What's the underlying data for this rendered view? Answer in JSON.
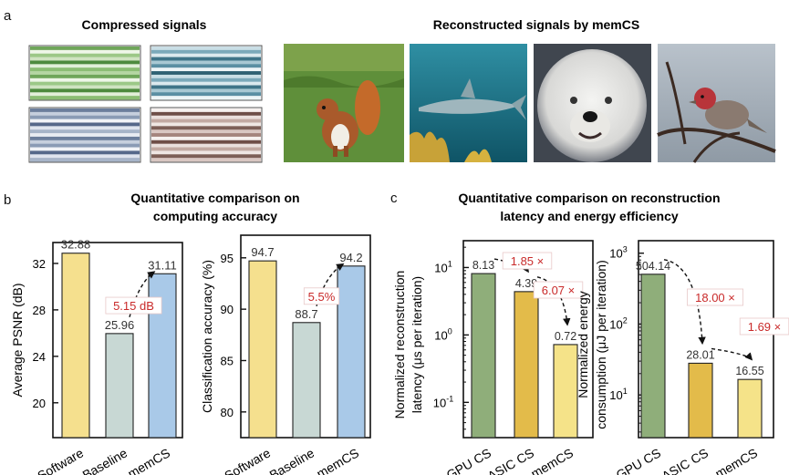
{
  "panel_letters": {
    "a": "a",
    "b": "b",
    "c": "c"
  },
  "panel_a": {
    "compressed_title": "Compressed signals",
    "reconstructed_title": "Reconstructed signals by memCS",
    "compressed_tiles": [
      {
        "name": "green",
        "colors": [
          "#6fa65a",
          "#cfe3c1",
          "#8bbd74",
          "#eef6e8",
          "#4d8a3e",
          "#b5d6a3",
          "#9cc887",
          "#e2efd9"
        ]
      },
      {
        "name": "teal",
        "colors": [
          "#5b8fa3",
          "#c9dee5",
          "#3f7488",
          "#eef5f7",
          "#7ba9ba",
          "#a9c8d3",
          "#2f6173",
          "#dbe9ee"
        ]
      },
      {
        "name": "grey-blue",
        "colors": [
          "#8a9bb5",
          "#dfe4ee",
          "#6c7e9c",
          "#f1f3f7",
          "#a7b4c8",
          "#c6cfdd",
          "#56688a",
          "#e8ecf2"
        ]
      },
      {
        "name": "brown",
        "colors": [
          "#a4857d",
          "#eadfdc",
          "#7d5f57",
          "#f6f1ef",
          "#c2a9a2",
          "#d9c7c2",
          "#6e4e47",
          "#efe6e3"
        ]
      }
    ],
    "photos": [
      "squirrel",
      "shark",
      "sheepdog",
      "finch"
    ]
  },
  "panel_b": {
    "title": "Quantitative comparison on computing accuracy",
    "title_lines": [
      "Quantitative comparison on",
      "computing accuracy"
    ]
  },
  "panel_c": {
    "title": "Quantitative comparison on reconstruction latency and energy efficiency",
    "title_lines": [
      "Quantitative comparison on reconstruction",
      "latency and energy efficiency"
    ]
  },
  "colors": {
    "software": "#f5e08e",
    "baseline": "#c8d8d4",
    "memcs_blue": "#a9c9e8",
    "gpu": "#8fae7a",
    "asic": "#e3bb4a",
    "memcs_yellow": "#f5e389",
    "annotation_red": "#c92a2a"
  },
  "chart_data": [
    {
      "id": "psnr",
      "type": "bar",
      "categories": [
        "Software",
        "Baseline",
        "memCS"
      ],
      "values": [
        32.88,
        25.96,
        31.11
      ],
      "value_labels": [
        "32.88",
        "25.96",
        "31.11"
      ],
      "title": "",
      "xlabel": "",
      "ylabel": "Average PSNR (dB)",
      "ylim": [
        17,
        33.8
      ],
      "yticks": [
        20,
        24,
        28,
        32
      ],
      "ytick_labels": [
        "20",
        "24",
        "28",
        "32"
      ],
      "yscale": "linear",
      "colors": [
        "#f5e08e",
        "#c8d8d4",
        "#a9c9e8"
      ],
      "annotations": [
        {
          "text": "5.15 dB",
          "from": 1,
          "to": 2
        }
      ]
    },
    {
      "id": "accuracy",
      "type": "bar",
      "categories": [
        "Software",
        "Baseline",
        "memCS"
      ],
      "values": [
        94.7,
        88.7,
        94.2
      ],
      "value_labels": [
        "94.7",
        "88.7",
        "94.2"
      ],
      "title": "",
      "xlabel": "",
      "ylabel": "Classification accuracy (%)",
      "ylim": [
        77.5,
        97.2
      ],
      "yticks": [
        80,
        85,
        90,
        95
      ],
      "ytick_labels": [
        "80",
        "85",
        "90",
        "95"
      ],
      "yscale": "linear",
      "colors": [
        "#f5e08e",
        "#c8d8d4",
        "#a9c9e8"
      ],
      "annotations": [
        {
          "text": "5.5%",
          "from": 1,
          "to": 2
        }
      ]
    },
    {
      "id": "latency",
      "type": "bar",
      "categories": [
        "GPU CS",
        "ASIC CS",
        "memCS"
      ],
      "values": [
        8.13,
        4.39,
        0.72
      ],
      "value_labels": [
        "8.13",
        "4.39",
        "0.72"
      ],
      "title": "",
      "xlabel": "",
      "ylabel_lines": [
        "Normalized reconstruction",
        "latency (μs per iteration)"
      ],
      "ylim": [
        0.03,
        25
      ],
      "yticks": [
        0.1,
        1,
        10
      ],
      "ytick_labels": [
        [
          "10",
          "-1"
        ],
        [
          "10",
          "0"
        ],
        [
          "10",
          "1"
        ]
      ],
      "yscale": "log",
      "colors": [
        "#8fae7a",
        "#e3bb4a",
        "#f5e389"
      ],
      "annotations": [
        {
          "text": "1.85 ×",
          "from": 0,
          "to": 1
        },
        {
          "text": "6.07 ×",
          "from": 1,
          "to": 2
        }
      ]
    },
    {
      "id": "energy",
      "type": "bar",
      "categories": [
        "GPU CS",
        "ASIC CS",
        "memCS"
      ],
      "values": [
        504.14,
        28.01,
        16.55
      ],
      "value_labels": [
        "504.14",
        "28.01",
        "16.55"
      ],
      "title": "",
      "xlabel": "",
      "ylabel_lines": [
        "Normalized energy",
        "consumption (μJ per iteration)"
      ],
      "ylim": [
        2.5,
        1500
      ],
      "yticks": [
        10,
        100,
        1000
      ],
      "ytick_labels": [
        [
          "10",
          "1"
        ],
        [
          "10",
          "2"
        ],
        [
          "10",
          "3"
        ]
      ],
      "yscale": "log",
      "colors": [
        "#8fae7a",
        "#e3bb4a",
        "#f5e389"
      ],
      "annotations": [
        {
          "text": "18.00 ×",
          "from": 0,
          "to": 1
        },
        {
          "text": "1.69 ×",
          "from": 1,
          "to": 2
        }
      ]
    }
  ]
}
